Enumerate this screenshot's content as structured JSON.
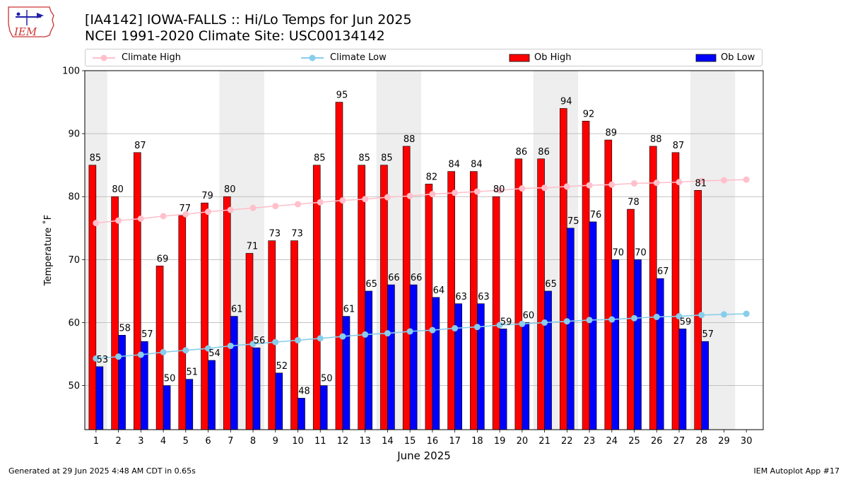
{
  "header": {
    "logo_text": "IEM",
    "title_line1": "[IA4142] IOWA-FALLS :: Hi/Lo Temps for Jun 2025",
    "title_line2": "NCEI 1991-2020 Climate Site: USC00134142"
  },
  "colors": {
    "ob_high": "#ff0000",
    "ob_low": "#0000ff",
    "climate_high": "#ffc0cb",
    "climate_low": "#87ceeb",
    "weekend_band": "#eeeeee",
    "grid": "#b0b0b0"
  },
  "chart_data": {
    "type": "bar",
    "xlabel": "June 2025",
    "ylabel": "Temperature $^\\circ$F",
    "ylabel_display": "Temperature ˚F",
    "ylim": [
      43,
      100
    ],
    "yticks": [
      50,
      60,
      70,
      80,
      90,
      100
    ],
    "grid": "horizontal",
    "legend_placement": "top, above plot",
    "categories": [
      "1",
      "2",
      "3",
      "4",
      "5",
      "6",
      "7",
      "8",
      "9",
      "10",
      "11",
      "12",
      "13",
      "14",
      "15",
      "16",
      "17",
      "18",
      "19",
      "20",
      "21",
      "22",
      "23",
      "24",
      "25",
      "26",
      "27",
      "28",
      "29",
      "30"
    ],
    "weekend_bands": [
      [
        0.5,
        1.5
      ],
      [
        6.5,
        8.5
      ],
      [
        13.5,
        15.5
      ],
      [
        20.5,
        22.5
      ],
      [
        27.5,
        29.5
      ]
    ],
    "series": [
      {
        "name": "Ob High",
        "kind": "bar",
        "values": [
          85,
          80,
          87,
          69,
          77,
          79,
          80,
          71,
          73,
          73,
          85,
          95,
          85,
          85,
          88,
          82,
          84,
          84,
          80,
          86,
          86,
          94,
          92,
          89,
          78,
          88,
          87,
          81,
          null,
          null
        ]
      },
      {
        "name": "Ob Low",
        "kind": "bar",
        "values": [
          53,
          58,
          57,
          50,
          51,
          54,
          61,
          56,
          52,
          48,
          50,
          61,
          65,
          66,
          66,
          64,
          63,
          63,
          59,
          60,
          65,
          75,
          76,
          70,
          70,
          67,
          59,
          57,
          null,
          null
        ]
      },
      {
        "name": "Climate High",
        "kind": "line",
        "values": [
          75.8,
          76.2,
          76.5,
          76.9,
          77.2,
          77.6,
          77.9,
          78.2,
          78.5,
          78.8,
          79.1,
          79.4,
          79.6,
          79.9,
          80.1,
          80.4,
          80.6,
          80.8,
          81.0,
          81.3,
          81.4,
          81.6,
          81.8,
          81.9,
          82.1,
          82.2,
          82.3,
          82.5,
          82.6,
          82.7
        ]
      },
      {
        "name": "Climate Low",
        "kind": "line",
        "values": [
          54.3,
          54.6,
          54.9,
          55.3,
          55.6,
          55.9,
          56.3,
          56.6,
          56.9,
          57.2,
          57.5,
          57.8,
          58.1,
          58.3,
          58.6,
          58.8,
          59.1,
          59.3,
          59.6,
          59.8,
          60.0,
          60.2,
          60.4,
          60.5,
          60.7,
          60.9,
          61.0,
          61.2,
          61.3,
          61.4
        ]
      }
    ]
  },
  "footer": {
    "generated": "Generated at 29 Jun 2025 4:48 AM CDT in 0.65s",
    "app": "IEM Autoplot App #17"
  }
}
